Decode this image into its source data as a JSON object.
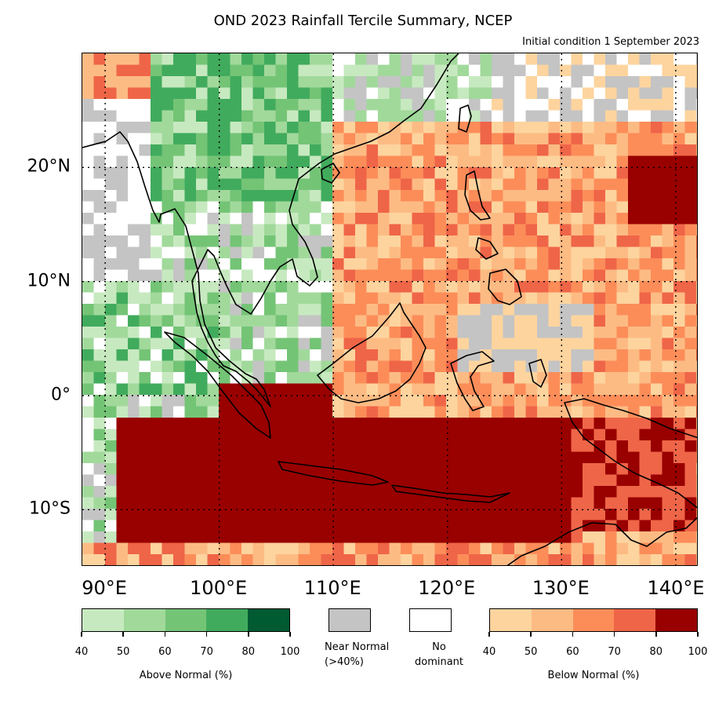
{
  "title": "OND 2023 Rainfall Tercile Summary, NCEP",
  "subtitle": "Initial condition 1 September 2023",
  "map": {
    "lon_range": [
      88,
      142
    ],
    "lat_range": [
      -15,
      30
    ],
    "lat_labels": [
      {
        "value": 20,
        "text": "20°N"
      },
      {
        "value": 10,
        "text": "10°N"
      },
      {
        "value": 0,
        "text": "0°"
      },
      {
        "value": -10,
        "text": "10°S"
      }
    ],
    "lon_labels": [
      {
        "value": 90,
        "text": "90°E"
      },
      {
        "value": 100,
        "text": "100°E"
      },
      {
        "value": 110,
        "text": "110°E"
      },
      {
        "value": 120,
        "text": "120°E"
      },
      {
        "value": 130,
        "text": "130°E"
      },
      {
        "value": 140,
        "text": "140°E"
      }
    ],
    "gridlines": "dotted"
  },
  "colors": {
    "above": [
      "#c7e9c0",
      "#a1d99b",
      "#74c476",
      "#41ab5d",
      "#005a32"
    ],
    "near_normal": "#c4c4c4",
    "no_dominant": "#ffffff",
    "below": [
      "#fdd49e",
      "#fdbb84",
      "#fc8d59",
      "#ef6548",
      "#990000"
    ]
  },
  "legend": {
    "above": {
      "caption": "Above Normal (%)",
      "ticks": [
        "40",
        "50",
        "60",
        "70",
        "80",
        "100"
      ]
    },
    "near_normal": {
      "caption_line1": "Near Normal",
      "caption_line2": "(>40%)"
    },
    "no_dominant": {
      "caption_line1": "No",
      "caption_line2": "dominant"
    },
    "below": {
      "caption": "Below Normal (%)",
      "ticks": [
        "40",
        "50",
        "60",
        "70",
        "80",
        "100"
      ]
    }
  }
}
